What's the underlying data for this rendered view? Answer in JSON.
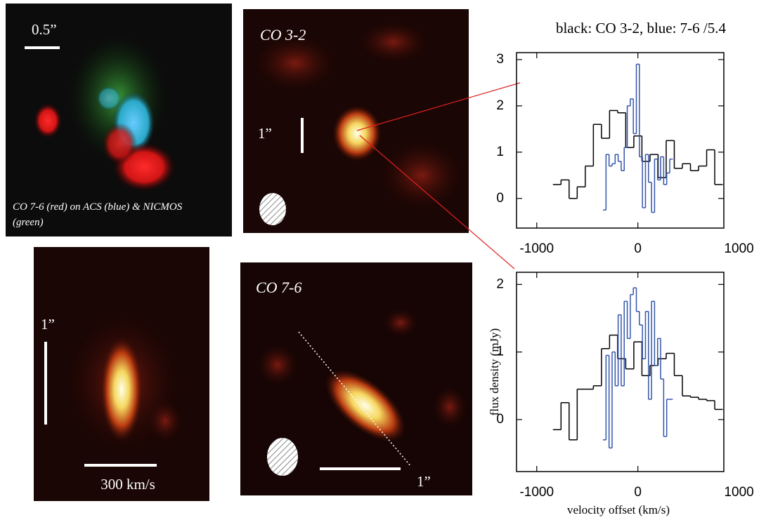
{
  "panels": {
    "scale_top_left": "0.5”",
    "caption_top_left": "CO 7-6 (red) on ACS (blue) & NICMOS (green)",
    "label_co32": "CO 3-2",
    "scale_co32": "1”",
    "scale_pv": "1”",
    "pv_velocity": "300 km/s",
    "label_co76": "CO 7-6",
    "scale_co76": "1”"
  },
  "chart_data": [
    {
      "type": "step",
      "title": "black: CO 3-2, blue: 7-6 /5.4",
      "xlim": [
        -1200,
        850
      ],
      "xticks": [
        -1000,
        0,
        1000
      ],
      "ylim": [
        -0.64,
        3.15
      ],
      "yticks": [
        0,
        1,
        2,
        3
      ],
      "series": [
        {
          "color": "#000000",
          "x": [
            -800,
            -720,
            -640,
            -560,
            -480,
            -400,
            -320,
            -240,
            -160,
            -80,
            0,
            80,
            160,
            240,
            320,
            400,
            480,
            560,
            640,
            720,
            800
          ],
          "values": [
            0.3,
            0.4,
            0,
            0.25,
            0.7,
            1.6,
            1.3,
            1.9,
            1.85,
            1.1,
            1.35,
            0.8,
            0.95,
            0.45,
            1.25,
            0.65,
            0.75,
            0.6,
            0.7,
            1.05,
            0.3
          ]
        },
        {
          "color": "#3355aa",
          "x": [
            -330,
            -300,
            -270,
            -240,
            -210,
            -180,
            -150,
            -120,
            -90,
            -60,
            -30,
            0,
            30,
            60,
            90,
            120,
            150,
            180,
            210,
            240,
            270,
            300,
            330
          ],
          "values": [
            -0.25,
            0.95,
            0.7,
            0.75,
            0.95,
            0.8,
            0.6,
            1.1,
            2.0,
            2.15,
            1.4,
            2.9,
            0.9,
            -0.2,
            0.95,
            0.35,
            -0.3,
            0.85,
            0.4,
            0.9,
            0.3,
            0.55,
            0.85
          ]
        }
      ]
    },
    {
      "type": "step",
      "xlabel": "velocity offset (km/s)",
      "ylabel": "flux density (mJy)",
      "xlim": [
        -1200,
        850
      ],
      "xticks": [
        -1000,
        0,
        1000
      ],
      "ylim": [
        -0.77,
        2.18
      ],
      "yticks": [
        0,
        1,
        2
      ],
      "series": [
        {
          "color": "#000000",
          "x": [
            -800,
            -720,
            -640,
            -560,
            -480,
            -400,
            -320,
            -240,
            -160,
            -80,
            0,
            80,
            160,
            240,
            320,
            400,
            480,
            560,
            640,
            720,
            800
          ],
          "values": [
            -0.15,
            0.25,
            -0.3,
            0.45,
            0.45,
            0.5,
            1.05,
            1.25,
            0.9,
            0.75,
            1.15,
            0.65,
            0.8,
            0.9,
            0.98,
            0.65,
            0.35,
            0.33,
            0.3,
            0.28,
            0.15
          ]
        },
        {
          "color": "#3355aa",
          "x": [
            -330,
            -300,
            -270,
            -240,
            -210,
            -180,
            -150,
            -120,
            -90,
            -60,
            -30,
            0,
            30,
            60,
            90,
            120,
            150,
            180,
            210,
            240,
            270,
            300,
            330
          ],
          "values": [
            -0.3,
            0.95,
            -0.42,
            1.0,
            0.5,
            1.55,
            0.5,
            1.75,
            1.2,
            1.85,
            1.95,
            1.6,
            1.4,
            0.9,
            1.6,
            0.3,
            1.75,
            0.8,
            1.2,
            0.6,
            -0.25,
            0.3,
            0.3
          ]
        }
      ]
    }
  ]
}
